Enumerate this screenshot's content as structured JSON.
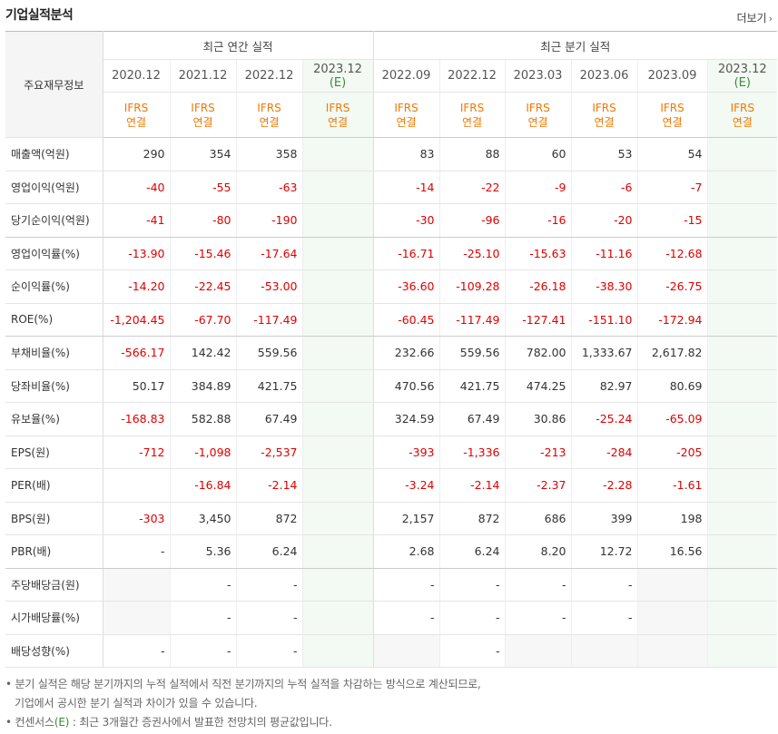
{
  "header": {
    "title": "기업실적분석",
    "more_label": "더보기"
  },
  "table": {
    "row_header": "주요재무정보",
    "annual_group": "최근 연간 실적",
    "quarter_group": "최근 분기 실적",
    "annual_periods": [
      "2020.12",
      "2021.12",
      "2022.12",
      "2023.12"
    ],
    "quarter_periods": [
      "2022.09",
      "2022.12",
      "2023.03",
      "2023.06",
      "2023.09",
      "2023.12"
    ],
    "estimate_mark": "(E)",
    "ifrs_label": "IFRS",
    "consolidated_label": "연결",
    "rows": [
      {
        "label": "매출액(억원)",
        "values": [
          "290",
          "354",
          "358",
          "",
          "83",
          "88",
          "60",
          "53",
          "54",
          ""
        ]
      },
      {
        "label": "영업이익(억원)",
        "values": [
          "-40",
          "-55",
          "-63",
          "",
          "-14",
          "-22",
          "-9",
          "-6",
          "-7",
          ""
        ]
      },
      {
        "label": "당기순이익(억원)",
        "values": [
          "-41",
          "-80",
          "-190",
          "",
          "-30",
          "-96",
          "-16",
          "-20",
          "-15",
          ""
        ]
      },
      {
        "label": "영업이익률(%)",
        "values": [
          "-13.90",
          "-15.46",
          "-17.64",
          "",
          "-16.71",
          "-25.10",
          "-15.63",
          "-11.16",
          "-12.68",
          ""
        ]
      },
      {
        "label": "순이익률(%)",
        "values": [
          "-14.20",
          "-22.45",
          "-53.00",
          "",
          "-36.60",
          "-109.28",
          "-26.18",
          "-38.30",
          "-26.75",
          ""
        ]
      },
      {
        "label": "ROE(%)",
        "values": [
          "-1,204.45",
          "-67.70",
          "-117.49",
          "",
          "-60.45",
          "-117.49",
          "-127.41",
          "-151.10",
          "-172.94",
          ""
        ]
      },
      {
        "label": "부채비율(%)",
        "values": [
          "-566.17",
          "142.42",
          "559.56",
          "",
          "232.66",
          "559.56",
          "782.00",
          "1,333.67",
          "2,617.82",
          ""
        ]
      },
      {
        "label": "당좌비율(%)",
        "values": [
          "50.17",
          "384.89",
          "421.75",
          "",
          "470.56",
          "421.75",
          "474.25",
          "82.97",
          "80.69",
          ""
        ]
      },
      {
        "label": "유보율(%)",
        "values": [
          "-168.83",
          "582.88",
          "67.49",
          "",
          "324.59",
          "67.49",
          "30.86",
          "-25.24",
          "-65.09",
          ""
        ]
      },
      {
        "label": "EPS(원)",
        "values": [
          "-712",
          "-1,098",
          "-2,537",
          "",
          "-393",
          "-1,336",
          "-213",
          "-284",
          "-205",
          ""
        ]
      },
      {
        "label": "PER(배)",
        "values": [
          "",
          "-16.84",
          "-2.14",
          "",
          "-3.24",
          "-2.14",
          "-2.37",
          "-2.28",
          "-1.61",
          ""
        ]
      },
      {
        "label": "BPS(원)",
        "values": [
          "-303",
          "3,450",
          "872",
          "",
          "2,157",
          "872",
          "686",
          "399",
          "198",
          ""
        ]
      },
      {
        "label": "PBR(배)",
        "values": [
          "-",
          "5.36",
          "6.24",
          "",
          "2.68",
          "6.24",
          "8.20",
          "12.72",
          "16.56",
          ""
        ]
      },
      {
        "label": "주당배당금(원)",
        "values": [
          "",
          "-",
          "-",
          "",
          "-",
          "-",
          "-",
          "-",
          "",
          ""
        ]
      },
      {
        "label": "시가배당률(%)",
        "values": [
          "",
          "-",
          "-",
          "",
          "-",
          "-",
          "-",
          "-",
          "",
          ""
        ]
      },
      {
        "label": "배당성향(%)",
        "values": [
          "-",
          "-",
          "-",
          "",
          "",
          "-",
          "",
          "",
          "",
          ""
        ]
      }
    ]
  },
  "notes": {
    "line1": "분기 실적은 해당 분기까지의 누적 실적에서 직전 분기까지의 누적 실적을 차감하는 방식으로 계산되므로,",
    "line2": "기업에서 공시한 분기 실적과 차이가 있을 수 있습니다.",
    "line3_prefix": "컨센서스",
    "line3_mark": "(E)",
    "line3_suffix": ": 최근 3개월간 증권사에서 발표한 전망치의 평균값입니다."
  },
  "colors": {
    "negative": "#e00000",
    "estimate_bg": "#f3f9f3",
    "ifrs": "#f07800",
    "estimate_text": "#3a8a3a"
  }
}
